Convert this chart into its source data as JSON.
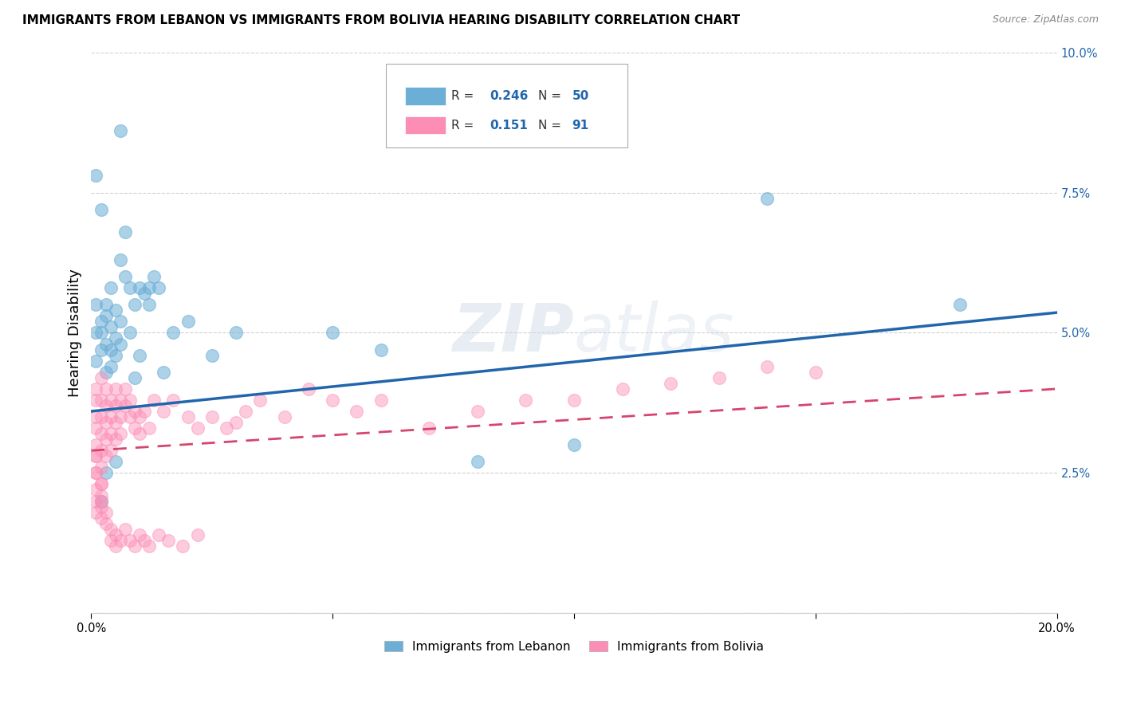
{
  "title": "IMMIGRANTS FROM LEBANON VS IMMIGRANTS FROM BOLIVIA HEARING DISABILITY CORRELATION CHART",
  "source": "Source: ZipAtlas.com",
  "xlabel_Lebanon": "Immigrants from Lebanon",
  "xlabel_Bolivia": "Immigrants from Bolivia",
  "ylabel": "Hearing Disability",
  "xlim": [
    0.0,
    0.2
  ],
  "ylim": [
    0.0,
    0.1
  ],
  "xticks": [
    0.0,
    0.05,
    0.1,
    0.15,
    0.2
  ],
  "yticks": [
    0.0,
    0.025,
    0.05,
    0.075,
    0.1
  ],
  "color_lebanon": "#6baed6",
  "color_bolivia": "#fc8db5",
  "trendline_lebanon_color": "#2166ac",
  "trendline_bolivia_color": "#d6456e",
  "watermark": "ZIPatlas",
  "lb_intercept": 0.036,
  "lb_slope": 0.088,
  "bo_intercept": 0.029,
  "bo_slope": 0.055,
  "lebanon_x": [
    0.001,
    0.001,
    0.002,
    0.002,
    0.003,
    0.003,
    0.004,
    0.004,
    0.005,
    0.005,
    0.006,
    0.006,
    0.007,
    0.008,
    0.009,
    0.01,
    0.011,
    0.012,
    0.013,
    0.015,
    0.017,
    0.02,
    0.001,
    0.002,
    0.003,
    0.003,
    0.004,
    0.005,
    0.006,
    0.007,
    0.008,
    0.009,
    0.01,
    0.012,
    0.014,
    0.001,
    0.002,
    0.004,
    0.006,
    0.025,
    0.03,
    0.05,
    0.06,
    0.08,
    0.1,
    0.14,
    0.18,
    0.002,
    0.003,
    0.005
  ],
  "lebanon_y": [
    0.05,
    0.055,
    0.05,
    0.052,
    0.048,
    0.053,
    0.047,
    0.051,
    0.049,
    0.054,
    0.048,
    0.052,
    0.06,
    0.058,
    0.055,
    0.058,
    0.057,
    0.058,
    0.06,
    0.043,
    0.05,
    0.052,
    0.045,
    0.047,
    0.043,
    0.055,
    0.044,
    0.046,
    0.063,
    0.068,
    0.05,
    0.042,
    0.046,
    0.055,
    0.058,
    0.078,
    0.072,
    0.058,
    0.086,
    0.046,
    0.05,
    0.05,
    0.047,
    0.027,
    0.03,
    0.074,
    0.055,
    0.02,
    0.025,
    0.027
  ],
  "bolivia_x": [
    0.001,
    0.001,
    0.001,
    0.001,
    0.001,
    0.001,
    0.001,
    0.001,
    0.001,
    0.001,
    0.002,
    0.002,
    0.002,
    0.002,
    0.002,
    0.002,
    0.002,
    0.002,
    0.002,
    0.002,
    0.003,
    0.003,
    0.003,
    0.003,
    0.003,
    0.004,
    0.004,
    0.004,
    0.004,
    0.005,
    0.005,
    0.005,
    0.005,
    0.006,
    0.006,
    0.006,
    0.007,
    0.007,
    0.008,
    0.008,
    0.009,
    0.009,
    0.01,
    0.01,
    0.011,
    0.012,
    0.013,
    0.015,
    0.017,
    0.02,
    0.022,
    0.025,
    0.028,
    0.03,
    0.032,
    0.035,
    0.04,
    0.045,
    0.05,
    0.055,
    0.06,
    0.07,
    0.08,
    0.09,
    0.1,
    0.11,
    0.12,
    0.13,
    0.14,
    0.15,
    0.001,
    0.001,
    0.002,
    0.002,
    0.003,
    0.003,
    0.004,
    0.004,
    0.005,
    0.005,
    0.006,
    0.007,
    0.008,
    0.009,
    0.01,
    0.011,
    0.012,
    0.014,
    0.016,
    0.019,
    0.022
  ],
  "bolivia_y": [
    0.04,
    0.038,
    0.035,
    0.033,
    0.03,
    0.028,
    0.025,
    0.022,
    0.02,
    0.018,
    0.042,
    0.038,
    0.035,
    0.032,
    0.029,
    0.026,
    0.023,
    0.021,
    0.019,
    0.017,
    0.04,
    0.037,
    0.034,
    0.031,
    0.028,
    0.038,
    0.035,
    0.032,
    0.029,
    0.04,
    0.037,
    0.034,
    0.031,
    0.038,
    0.035,
    0.032,
    0.04,
    0.037,
    0.038,
    0.035,
    0.036,
    0.033,
    0.035,
    0.032,
    0.036,
    0.033,
    0.038,
    0.036,
    0.038,
    0.035,
    0.033,
    0.035,
    0.033,
    0.034,
    0.036,
    0.038,
    0.035,
    0.04,
    0.038,
    0.036,
    0.038,
    0.033,
    0.036,
    0.038,
    0.038,
    0.04,
    0.041,
    0.042,
    0.044,
    0.043,
    0.028,
    0.025,
    0.023,
    0.02,
    0.018,
    0.016,
    0.015,
    0.013,
    0.014,
    0.012,
    0.013,
    0.015,
    0.013,
    0.012,
    0.014,
    0.013,
    0.012,
    0.014,
    0.013,
    0.012,
    0.014
  ]
}
